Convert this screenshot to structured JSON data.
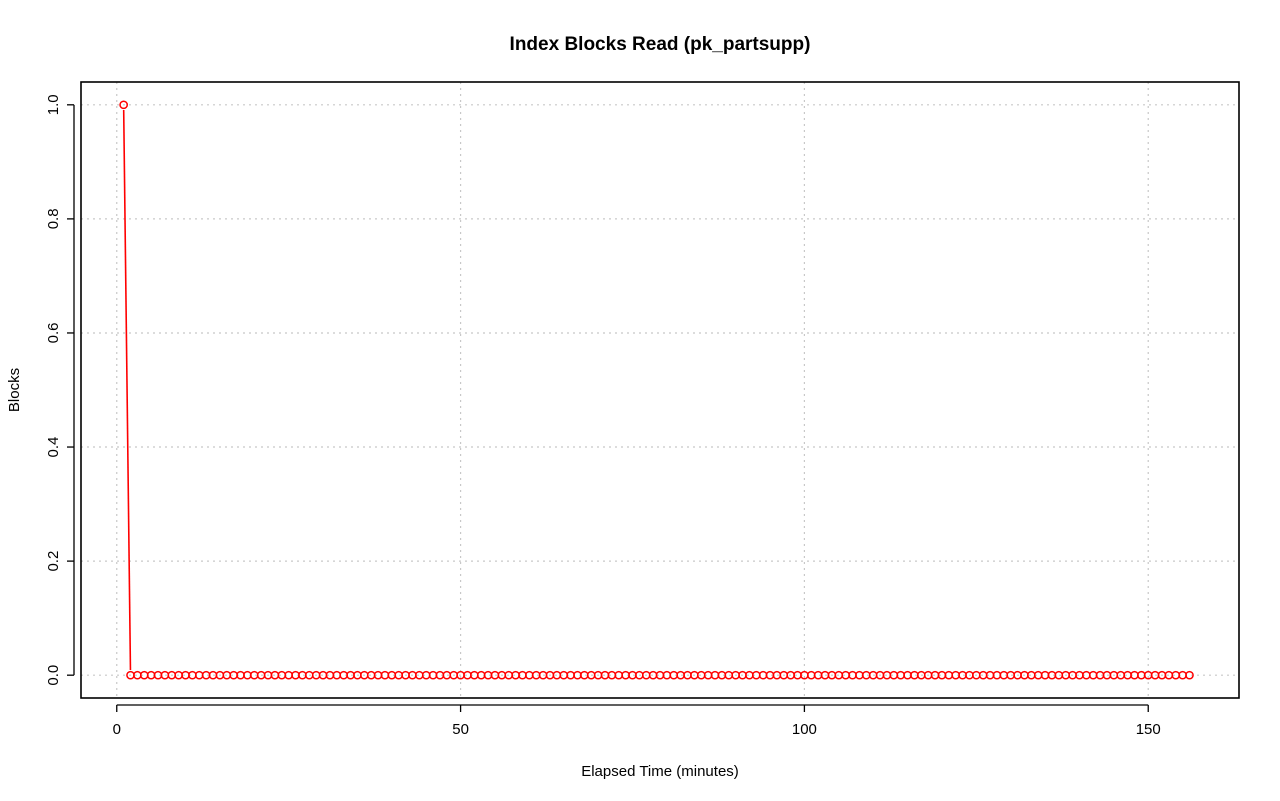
{
  "chart_data": {
    "type": "line",
    "title": "Index Blocks Read (pk_partsupp)",
    "xlabel": "Elapsed Time (minutes)",
    "ylabel": "Blocks",
    "xlim": [
      -5.2,
      163.2
    ],
    "ylim": [
      -0.04,
      1.04
    ],
    "x_ticks": [
      0,
      50,
      100,
      150
    ],
    "y_ticks": [
      0.0,
      0.2,
      0.4,
      0.6,
      0.8,
      1.0
    ],
    "x_tick_labels": [
      "0",
      "50",
      "100",
      "150"
    ],
    "y_tick_labels": [
      "0.0",
      "0.2",
      "0.4",
      "0.6",
      "0.8",
      "1.0"
    ],
    "grid": true,
    "series": [
      {
        "color": "#ff0000",
        "marker": "open-circle",
        "x_start": 1,
        "x_end": 156,
        "values": [
          1,
          0,
          0,
          0,
          0,
          0,
          0,
          0,
          0,
          0,
          0,
          0,
          0,
          0,
          0,
          0,
          0,
          0,
          0,
          0,
          0,
          0,
          0,
          0,
          0,
          0,
          0,
          0,
          0,
          0,
          0,
          0,
          0,
          0,
          0,
          0,
          0,
          0,
          0,
          0,
          0,
          0,
          0,
          0,
          0,
          0,
          0,
          0,
          0,
          0,
          0,
          0,
          0,
          0,
          0,
          0,
          0,
          0,
          0,
          0,
          0,
          0,
          0,
          0,
          0,
          0,
          0,
          0,
          0,
          0,
          0,
          0,
          0,
          0,
          0,
          0,
          0,
          0,
          0,
          0,
          0,
          0,
          0,
          0,
          0,
          0,
          0,
          0,
          0,
          0,
          0,
          0,
          0,
          0,
          0,
          0,
          0,
          0,
          0,
          0,
          0,
          0,
          0,
          0,
          0,
          0,
          0,
          0,
          0,
          0,
          0,
          0,
          0,
          0,
          0,
          0,
          0,
          0,
          0,
          0,
          0,
          0,
          0,
          0,
          0,
          0,
          0,
          0,
          0,
          0,
          0,
          0,
          0,
          0,
          0,
          0,
          0,
          0,
          0,
          0,
          0,
          0,
          0,
          0,
          0,
          0,
          0,
          0,
          0,
          0,
          0,
          0,
          0,
          0,
          0,
          0
        ]
      }
    ]
  }
}
